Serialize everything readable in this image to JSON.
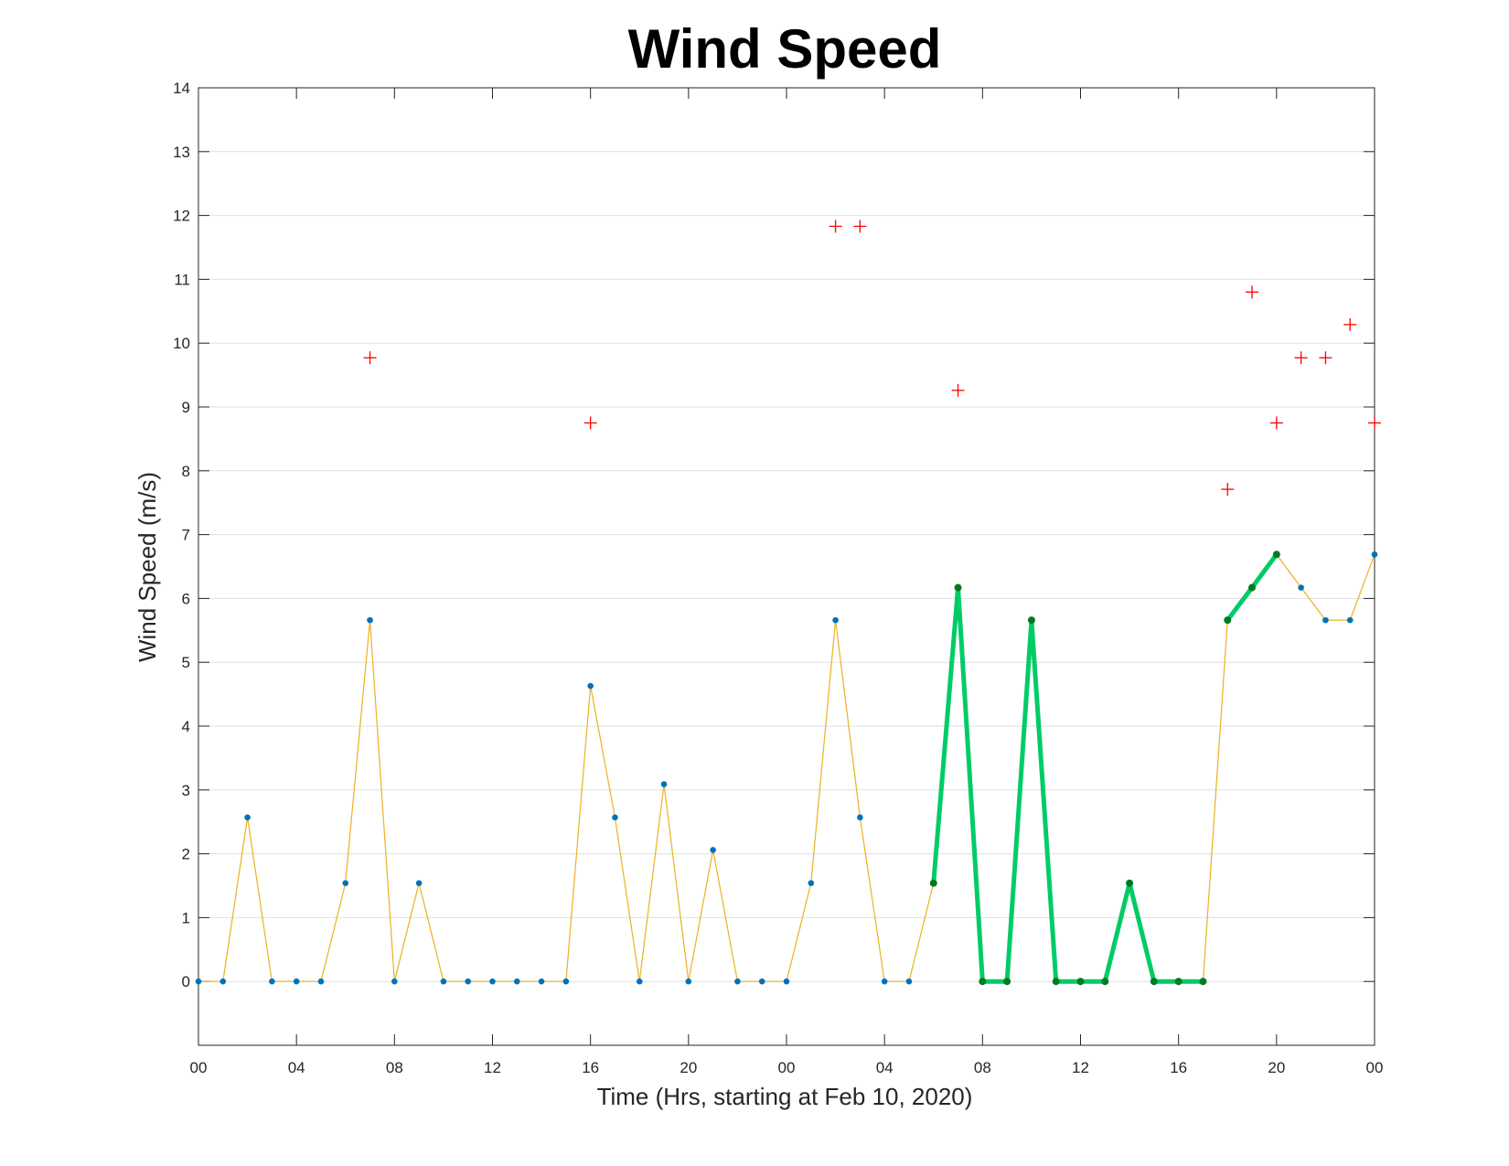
{
  "chart_data": {
    "type": "line",
    "title": "Wind Speed",
    "xlabel": "Time (Hrs, starting at Feb 10, 2020)",
    "ylabel": "Wind Speed (m/s)",
    "xlim_hours": [
      0,
      48
    ],
    "ylim": [
      -1,
      14
    ],
    "grid": true,
    "x_tick_labels": [
      "00",
      "04",
      "08",
      "12",
      "16",
      "20",
      "00",
      "04",
      "08",
      "12",
      "16",
      "20",
      "00"
    ],
    "y_tick_labels": [
      "0",
      "1",
      "2",
      "3",
      "4",
      "5",
      "6",
      "7",
      "8",
      "9",
      "10",
      "11",
      "12",
      "13",
      "14"
    ],
    "colors": {
      "line": "#EDB120",
      "marker": "#0072BD",
      "highlight_line": "#00CC66",
      "highlight_marker": "#007A1F",
      "gust_marker": "#FF0000",
      "grid": "#DFDFDF",
      "axes": "#262626"
    },
    "series": [
      {
        "kind": "speed",
        "x": [
          0,
          1,
          2,
          3,
          4,
          5,
          6,
          7,
          8,
          9,
          10,
          11,
          12,
          13,
          14,
          15,
          16,
          17,
          18,
          19,
          20,
          21,
          22,
          23,
          24,
          25,
          26,
          27,
          28,
          29,
          30,
          31,
          32,
          33,
          34,
          35,
          36,
          37,
          38,
          39,
          40,
          41,
          42,
          43,
          44,
          45,
          46,
          47,
          48
        ],
        "values": [
          0,
          0,
          2.57,
          0,
          0,
          0,
          1.54,
          5.66,
          0,
          1.54,
          0,
          0,
          0,
          0,
          0,
          0,
          4.63,
          2.57,
          0,
          3.09,
          0,
          2.06,
          0,
          0,
          0,
          1.54,
          5.66,
          2.57,
          0,
          0,
          1.54,
          6.17,
          0,
          0,
          5.66,
          0,
          0,
          0,
          1.54,
          0,
          0,
          0,
          5.66,
          6.17,
          6.69,
          6.17,
          5.66,
          5.66,
          6.69
        ]
      },
      {
        "kind": "highlight",
        "segments": [
          {
            "x": [
              30,
              31,
              32,
              33,
              34,
              35,
              36,
              37,
              38,
              39,
              40,
              41
            ],
            "values": [
              1.54,
              6.17,
              0,
              0,
              5.66,
              0,
              0,
              0,
              1.54,
              0,
              0,
              0
            ]
          },
          {
            "x": [
              42,
              43,
              44
            ],
            "values": [
              5.66,
              6.17,
              6.69
            ]
          }
        ]
      },
      {
        "kind": "gust",
        "x": [
          7,
          16,
          26,
          27,
          31,
          42,
          43,
          44,
          45,
          46,
          47,
          48
        ],
        "values": [
          9.77,
          8.75,
          11.83,
          11.83,
          9.26,
          7.71,
          10.8,
          8.75,
          9.77,
          9.77,
          10.29,
          8.75
        ]
      }
    ]
  }
}
